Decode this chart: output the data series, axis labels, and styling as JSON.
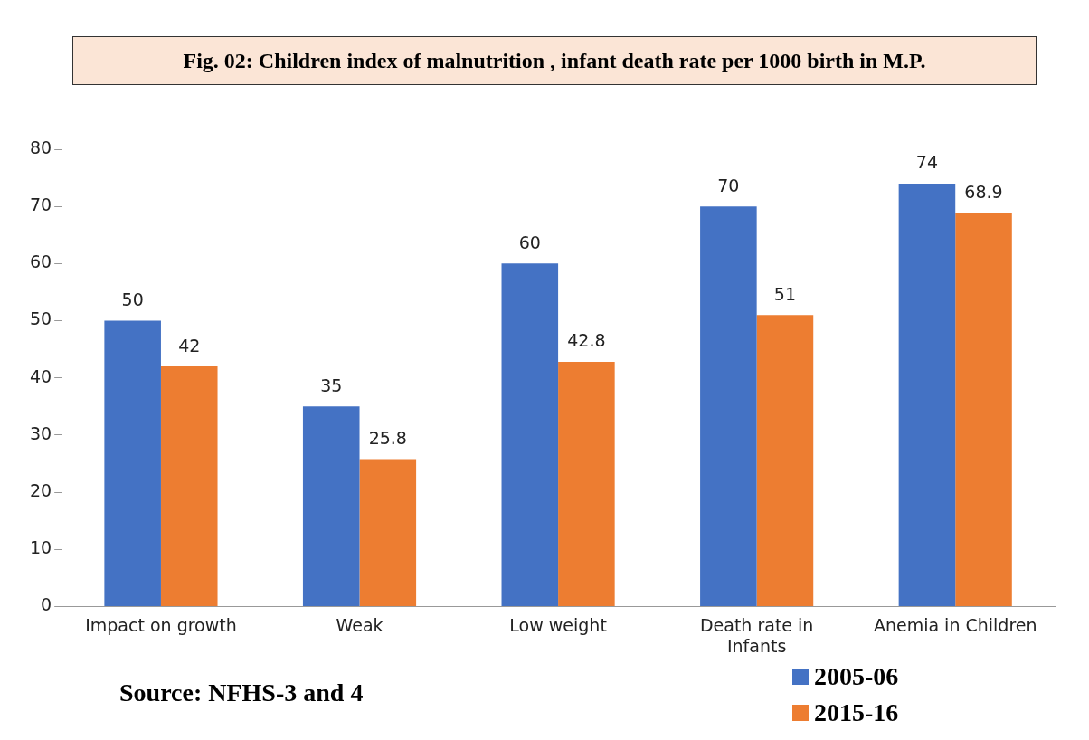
{
  "chart_data": {
    "type": "bar",
    "title": "Fig. 02: Children index of malnutrition , infant death rate per 1000 birth in M.P.",
    "categories": [
      "Impact on growth",
      "Weak",
      "Low weight",
      "Death rate in Infants",
      "Anemia in Children"
    ],
    "series": [
      {
        "name": "2005-06",
        "color": "#4472c4",
        "values": [
          50,
          35,
          60,
          70,
          74
        ]
      },
      {
        "name": "2015-16",
        "color": "#ed7d31",
        "values": [
          42,
          25.8,
          42.8,
          51,
          68.9
        ]
      }
    ],
    "ylim": [
      0,
      80
    ],
    "yticks": [
      0,
      10,
      20,
      30,
      40,
      50,
      60,
      70,
      80
    ],
    "grid": false,
    "legend": "bottom right",
    "data_labels": true,
    "annotations": [
      "Source: NFHS-3 and 4"
    ]
  }
}
